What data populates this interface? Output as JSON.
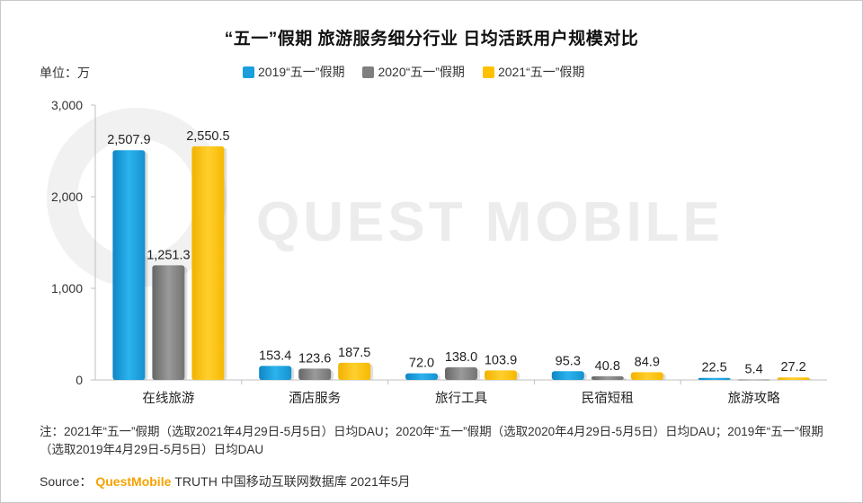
{
  "title": "“五一”假期 旅游服务细分行业 日均活跃用户规模对比",
  "unit_label": "单位：万",
  "watermark": "QUEST MOBILE",
  "note": "注：2021年“五一”假期（选取2021年4月29日-5月5日）日均DAU；2020年“五一”假期（选取2020年4月29日-5月5日）日均DAU；2019年“五一”假期（选取2019年4月29日-5月5日）日均DAU",
  "source": {
    "prefix": "Source：",
    "brand": "QuestMobile",
    "rest": "TRUTH 中国移动互联网数据库 2021年5月"
  },
  "chart_data": {
    "type": "bar",
    "title": "“五一”假期 旅游服务细分行业 日均活跃用户规模对比",
    "ylabel": "单位：万",
    "ylim": [
      0,
      3000
    ],
    "yticks": [
      "0",
      "1,000",
      "2,000",
      "3,000"
    ],
    "ytick_values": [
      0,
      1000,
      2000,
      3000
    ],
    "categories": [
      "在线旅游",
      "酒店服务",
      "旅行工具",
      "民宿短租",
      "旅游攻略"
    ],
    "legend_position": "top",
    "grid": false,
    "series": [
      {
        "name": "2019“五一”假期",
        "color": "#1a9fdc",
        "values": [
          2507.9,
          153.4,
          72.0,
          95.3,
          22.5
        ],
        "labels": [
          "2,507.9",
          "153.4",
          "72.0",
          "95.3",
          "22.5"
        ]
      },
      {
        "name": "2020“五一”假期",
        "color": "#7f7f7f",
        "values": [
          1251.3,
          123.6,
          138.0,
          40.8,
          5.4
        ],
        "labels": [
          "1,251.3",
          "123.6",
          "138.0",
          "40.8",
          "5.4"
        ]
      },
      {
        "name": "2021“五一”假期",
        "color": "#ffc000",
        "values": [
          2550.5,
          187.5,
          103.9,
          84.9,
          27.2
        ],
        "labels": [
          "2,550.5",
          "187.5",
          "103.9",
          "84.9",
          "27.2"
        ]
      }
    ]
  }
}
